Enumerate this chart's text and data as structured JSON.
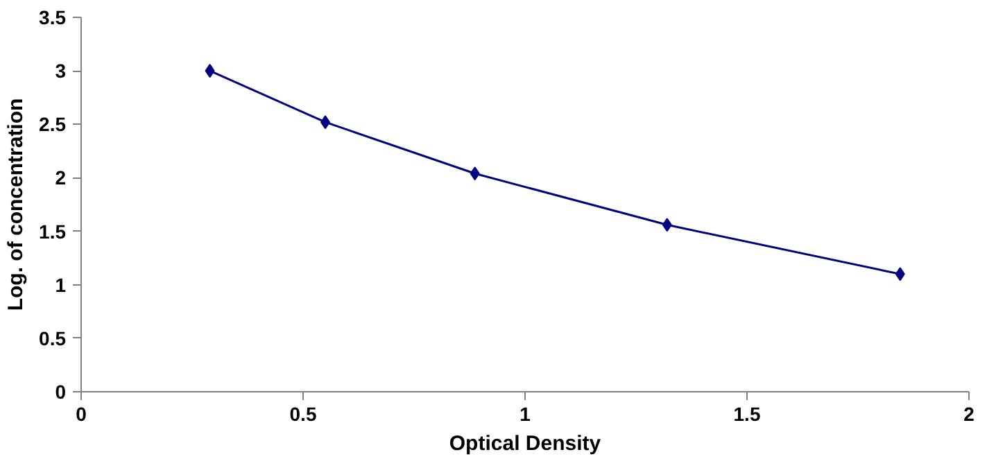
{
  "chart_data": {
    "type": "line",
    "xlabel": "Optical Density",
    "ylabel": "Log. of concentration",
    "x": [
      0.29,
      0.55,
      0.887,
      1.32,
      1.845
    ],
    "series": [
      {
        "color": "#000080",
        "values": [
          3.0,
          2.52,
          2.04,
          1.56,
          1.1
        ]
      }
    ],
    "xlim": [
      0,
      2
    ],
    "xticks": [
      0,
      0.5,
      1,
      1.5,
      2
    ],
    "ylim": [
      0,
      3.5
    ],
    "yticks": [
      0,
      0.5,
      1,
      1.5,
      2,
      2.5,
      3,
      3.5
    ],
    "marker": "diamond",
    "line_style": "solid",
    "grid": false
  }
}
